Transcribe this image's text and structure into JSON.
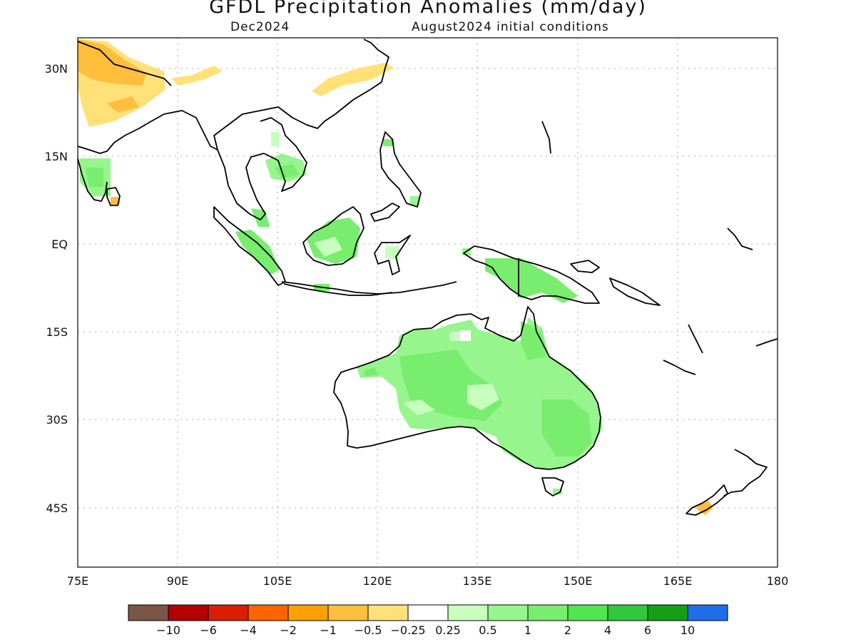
{
  "title": "GFDL Precipitation Anomalies (mm/day)",
  "subtitle_left": "Dec2024",
  "subtitle_right": "August2024 initial conditions",
  "lat_labels": [
    "30N",
    "15N",
    "EQ",
    "15S",
    "30S",
    "45S"
  ],
  "lon_labels": [
    "75E",
    "90E",
    "105E",
    "120E",
    "135E",
    "150E",
    "165E",
    "180"
  ],
  "colorbar": {
    "colors": [
      "#7a5548",
      "#b40000",
      "#dc1e00",
      "#ff6400",
      "#ffa000",
      "#ffbe3c",
      "#ffe178",
      "#ffffff",
      "#c8ffbe",
      "#96f58c",
      "#78ed6e",
      "#50e650",
      "#32c83c",
      "#14a014",
      "#1e6eeb"
    ],
    "tick_labels": [
      "−10",
      "−6",
      "−4",
      "−2",
      "−1",
      "−0.5",
      "−0.25",
      "0.25",
      "0.5",
      "1",
      "2",
      "4",
      "6",
      "10"
    ]
  }
}
